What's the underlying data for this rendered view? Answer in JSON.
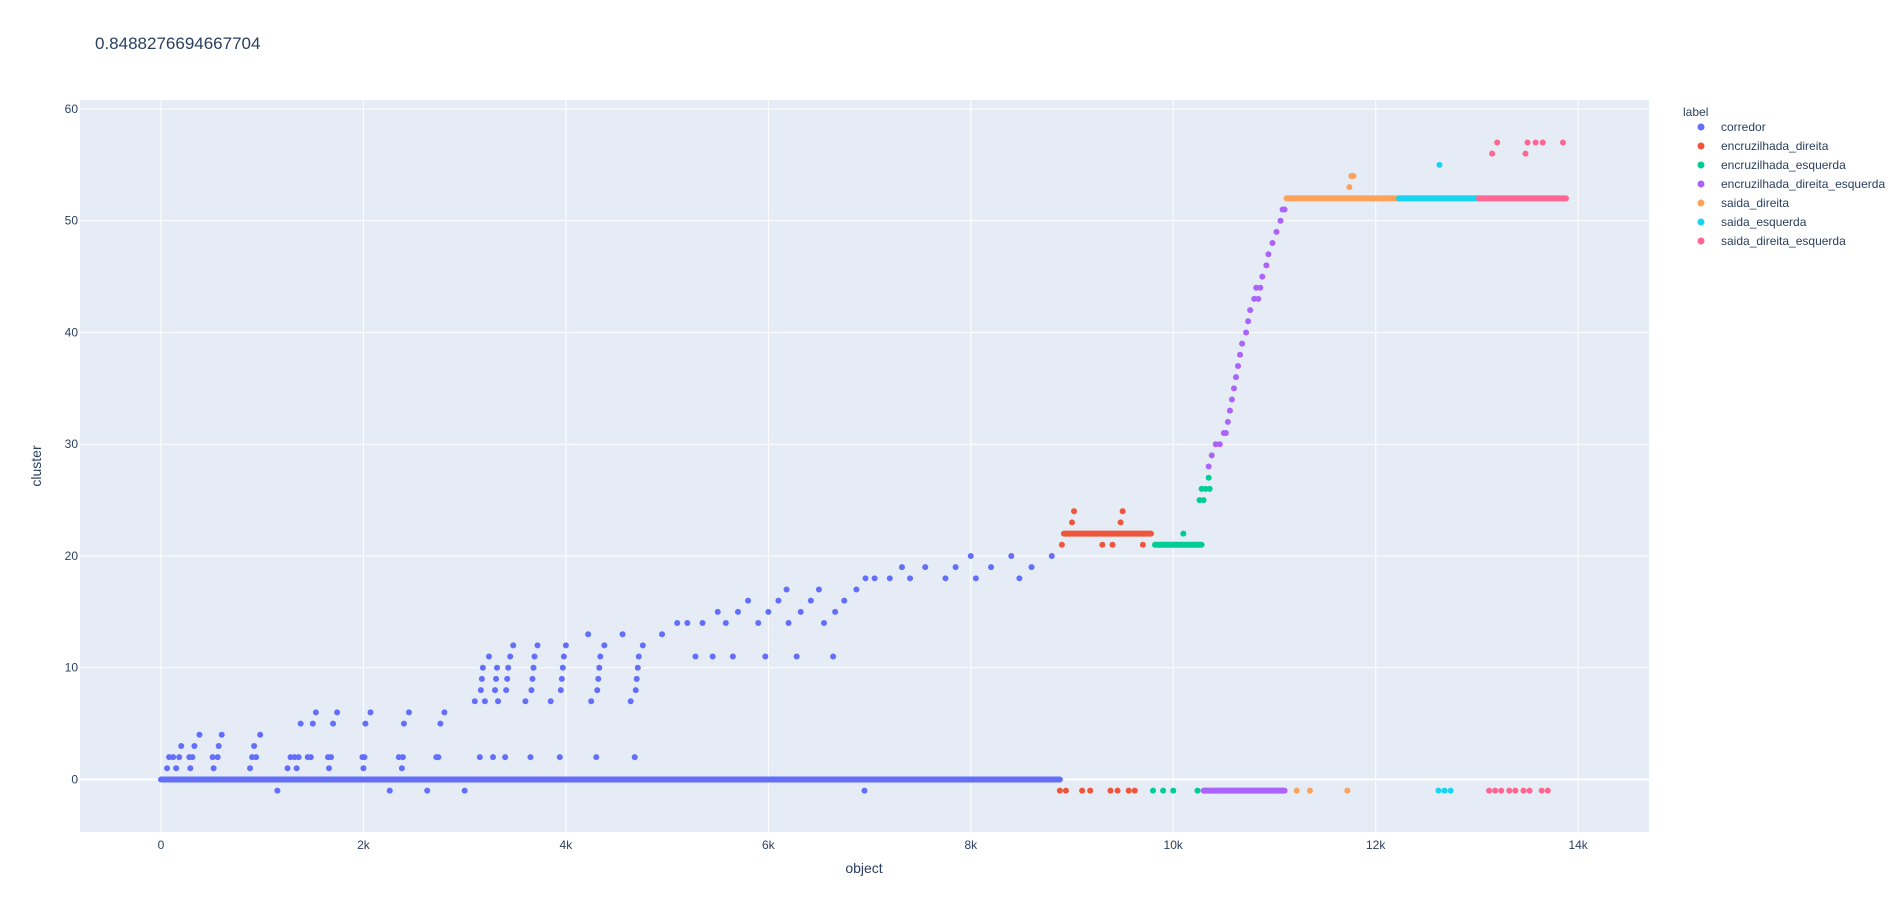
{
  "chart_data": {
    "type": "scatter",
    "title": "0.8488276694667704",
    "xlabel": "object",
    "ylabel": "cluster",
    "xlim": [
      -800,
      14700
    ],
    "ylim": [
      -4.7,
      60.8
    ],
    "x_ticks": [
      0,
      2000,
      4000,
      6000,
      8000,
      10000,
      12000,
      14000
    ],
    "x_tick_labels": [
      "0",
      "2k",
      "4k",
      "6k",
      "8k",
      "10k",
      "12k",
      "14k"
    ],
    "y_ticks": [
      0,
      10,
      20,
      30,
      40,
      50,
      60
    ],
    "y_tick_labels": [
      "0",
      "10",
      "20",
      "30",
      "40",
      "50",
      "60"
    ],
    "grid": true,
    "legend": {
      "title": "label",
      "placement": "right"
    },
    "series": [
      {
        "name": "corredor",
        "color": "#636efa",
        "lines": [
          {
            "x0": 0,
            "x1": 8880,
            "y": 0
          }
        ],
        "points": [
          [
            60,
            1
          ],
          [
            80,
            2
          ],
          [
            120,
            2
          ],
          [
            150,
            1
          ],
          [
            180,
            2
          ],
          [
            200,
            3
          ],
          [
            230,
            0
          ],
          [
            280,
            2
          ],
          [
            290,
            1
          ],
          [
            310,
            2
          ],
          [
            330,
            3
          ],
          [
            380,
            4
          ],
          [
            510,
            2
          ],
          [
            520,
            1
          ],
          [
            560,
            2
          ],
          [
            570,
            3
          ],
          [
            600,
            4
          ],
          [
            880,
            1
          ],
          [
            900,
            2
          ],
          [
            920,
            3
          ],
          [
            940,
            2
          ],
          [
            980,
            4
          ],
          [
            1150,
            -1
          ],
          [
            1250,
            1
          ],
          [
            1280,
            2
          ],
          [
            1320,
            2
          ],
          [
            1340,
            1
          ],
          [
            1360,
            2
          ],
          [
            1380,
            5
          ],
          [
            1450,
            2
          ],
          [
            1480,
            2
          ],
          [
            1500,
            5
          ],
          [
            1530,
            6
          ],
          [
            1650,
            2
          ],
          [
            1660,
            1
          ],
          [
            1680,
            2
          ],
          [
            1700,
            5
          ],
          [
            1740,
            6
          ],
          [
            1990,
            2
          ],
          [
            2000,
            1
          ],
          [
            2010,
            2
          ],
          [
            2020,
            5
          ],
          [
            2070,
            6
          ],
          [
            2260,
            -1
          ],
          [
            2350,
            2
          ],
          [
            2380,
            1
          ],
          [
            2390,
            2
          ],
          [
            2400,
            5
          ],
          [
            2450,
            6
          ],
          [
            2630,
            -1
          ],
          [
            2720,
            2
          ],
          [
            2740,
            2
          ],
          [
            2760,
            5
          ],
          [
            2800,
            6
          ],
          [
            3000,
            -1
          ],
          [
            3100,
            7
          ],
          [
            3150,
            2
          ],
          [
            3160,
            8
          ],
          [
            3170,
            9
          ],
          [
            3180,
            10
          ],
          [
            3200,
            7
          ],
          [
            3240,
            11
          ],
          [
            3280,
            2
          ],
          [
            3300,
            8
          ],
          [
            3310,
            9
          ],
          [
            3320,
            10
          ],
          [
            3330,
            7
          ],
          [
            3400,
            2
          ],
          [
            3410,
            8
          ],
          [
            3420,
            9
          ],
          [
            3430,
            10
          ],
          [
            3450,
            11
          ],
          [
            3480,
            12
          ],
          [
            3600,
            7
          ],
          [
            3650,
            2
          ],
          [
            3660,
            8
          ],
          [
            3670,
            9
          ],
          [
            3680,
            10
          ],
          [
            3690,
            11
          ],
          [
            3720,
            12
          ],
          [
            3850,
            7
          ],
          [
            3940,
            2
          ],
          [
            3950,
            8
          ],
          [
            3960,
            9
          ],
          [
            3970,
            10
          ],
          [
            3980,
            11
          ],
          [
            4000,
            12
          ],
          [
            4220,
            13
          ],
          [
            4250,
            7
          ],
          [
            4300,
            2
          ],
          [
            4310,
            8
          ],
          [
            4320,
            9
          ],
          [
            4330,
            10
          ],
          [
            4340,
            11
          ],
          [
            4380,
            12
          ],
          [
            4560,
            13
          ],
          [
            4640,
            7
          ],
          [
            4680,
            2
          ],
          [
            4690,
            8
          ],
          [
            4700,
            9
          ],
          [
            4710,
            10
          ],
          [
            4720,
            11
          ],
          [
            4760,
            12
          ],
          [
            4950,
            13
          ],
          [
            5100,
            14
          ],
          [
            5200,
            14
          ],
          [
            5280,
            11
          ],
          [
            5350,
            14
          ],
          [
            5450,
            11
          ],
          [
            5500,
            15
          ],
          [
            5580,
            14
          ],
          [
            5650,
            11
          ],
          [
            5700,
            15
          ],
          [
            5800,
            16
          ],
          [
            5900,
            14
          ],
          [
            5970,
            11
          ],
          [
            6000,
            15
          ],
          [
            6100,
            16
          ],
          [
            6180,
            17
          ],
          [
            6200,
            14
          ],
          [
            6280,
            11
          ],
          [
            6320,
            15
          ],
          [
            6420,
            16
          ],
          [
            6500,
            17
          ],
          [
            6550,
            14
          ],
          [
            6640,
            11
          ],
          [
            6660,
            15
          ],
          [
            6750,
            16
          ],
          [
            6870,
            17
          ],
          [
            6950,
            -1
          ],
          [
            6960,
            18
          ],
          [
            7050,
            18
          ],
          [
            7200,
            18
          ],
          [
            7320,
            19
          ],
          [
            7400,
            18
          ],
          [
            7550,
            19
          ],
          [
            7750,
            18
          ],
          [
            7850,
            19
          ],
          [
            8000,
            20
          ],
          [
            8050,
            18
          ],
          [
            8200,
            19
          ],
          [
            8400,
            20
          ],
          [
            8480,
            18
          ],
          [
            8600,
            19
          ],
          [
            8800,
            20
          ]
        ]
      },
      {
        "name": "encruzilhada_direita",
        "color": "#ef553b",
        "lines": [
          {
            "x0": 8920,
            "x1": 9780,
            "y": 22
          }
        ],
        "points": [
          [
            8880,
            -1
          ],
          [
            8900,
            21
          ],
          [
            8940,
            -1
          ],
          [
            9000,
            23
          ],
          [
            9020,
            24
          ],
          [
            9100,
            -1
          ],
          [
            9180,
            -1
          ],
          [
            9300,
            21
          ],
          [
            9380,
            -1
          ],
          [
            9400,
            21
          ],
          [
            9450,
            -1
          ],
          [
            9480,
            23
          ],
          [
            9500,
            24
          ],
          [
            9560,
            -1
          ],
          [
            9620,
            -1
          ],
          [
            9700,
            21
          ]
        ]
      },
      {
        "name": "encruzilhada_esquerda",
        "color": "#00cc96",
        "lines": [
          {
            "x0": 9820,
            "x1": 10280,
            "y": 21
          }
        ],
        "points": [
          [
            9800,
            -1
          ],
          [
            9900,
            -1
          ],
          [
            10000,
            -1
          ],
          [
            10100,
            22
          ],
          [
            10240,
            -1
          ],
          [
            10260,
            25
          ],
          [
            10280,
            26
          ],
          [
            10300,
            25
          ],
          [
            10320,
            26
          ],
          [
            10350,
            27
          ],
          [
            10360,
            26
          ]
        ]
      },
      {
        "name": "encruzilhada_direita_esquerda",
        "color": "#ab63fa",
        "lines": [
          {
            "x0": 10300,
            "x1": 11100,
            "y": -1
          }
        ],
        "points": [
          [
            10350,
            28
          ],
          [
            10380,
            29
          ],
          [
            10420,
            30
          ],
          [
            10460,
            30
          ],
          [
            10500,
            31
          ],
          [
            10520,
            31
          ],
          [
            10540,
            32
          ],
          [
            10560,
            33
          ],
          [
            10580,
            34
          ],
          [
            10600,
            35
          ],
          [
            10620,
            36
          ],
          [
            10640,
            37
          ],
          [
            10660,
            38
          ],
          [
            10680,
            39
          ],
          [
            10720,
            40
          ],
          [
            10740,
            41
          ],
          [
            10760,
            42
          ],
          [
            10800,
            43
          ],
          [
            10820,
            44
          ],
          [
            10840,
            43
          ],
          [
            10860,
            44
          ],
          [
            10880,
            45
          ],
          [
            10920,
            46
          ],
          [
            10940,
            47
          ],
          [
            10980,
            48
          ],
          [
            11020,
            49
          ],
          [
            11060,
            50
          ],
          [
            11080,
            51
          ],
          [
            11100,
            51
          ]
        ]
      },
      {
        "name": "saida_direita",
        "color": "#fea15a",
        "lines": [
          {
            "x0": 11120,
            "x1": 12230,
            "y": 52
          }
        ],
        "points": [
          [
            11220,
            -1
          ],
          [
            11350,
            -1
          ],
          [
            11720,
            -1
          ],
          [
            11740,
            53
          ],
          [
            11760,
            54
          ],
          [
            11780,
            54
          ]
        ]
      },
      {
        "name": "saida_esquerda",
        "color": "#19d3f3",
        "lines": [
          {
            "x0": 12230,
            "x1": 13020,
            "y": 52
          }
        ],
        "points": [
          [
            12620,
            -1
          ],
          [
            12680,
            -1
          ],
          [
            12740,
            -1
          ],
          [
            12630,
            55
          ]
        ]
      },
      {
        "name": "saida_direita_esquerda",
        "color": "#ff6692",
        "lines": [
          {
            "x0": 13020,
            "x1": 13880,
            "y": 52
          }
        ],
        "points": [
          [
            13120,
            -1
          ],
          [
            13180,
            -1
          ],
          [
            13240,
            -1
          ],
          [
            13320,
            -1
          ],
          [
            13380,
            -1
          ],
          [
            13460,
            -1
          ],
          [
            13520,
            -1
          ],
          [
            13640,
            -1
          ],
          [
            13700,
            -1
          ],
          [
            13150,
            56
          ],
          [
            13200,
            57
          ],
          [
            13480,
            56
          ],
          [
            13500,
            57
          ],
          [
            13580,
            57
          ],
          [
            13650,
            57
          ],
          [
            13850,
            57
          ]
        ]
      }
    ]
  }
}
